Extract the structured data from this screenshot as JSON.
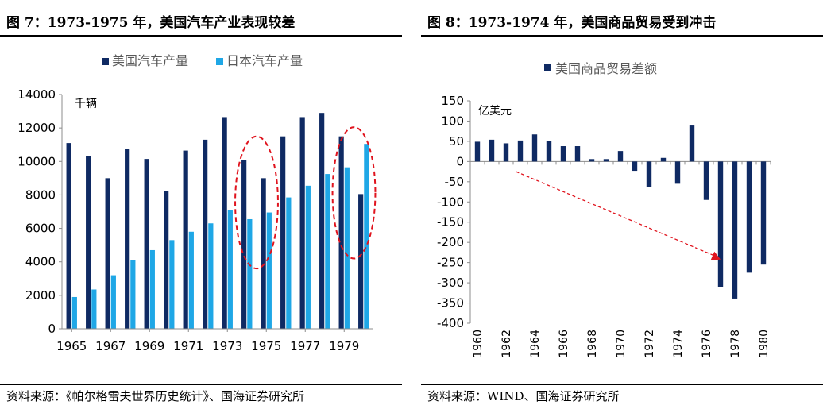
{
  "left": {
    "title": "图 7：1973-1975 年，美国汽车产业表现较差",
    "source": "资料来源：《帕尔格雷夫世界历史统计》、国海证券研究所"
  },
  "right": {
    "title": "图 8：1973-1974 年，美国商品贸易受到冲击",
    "source": "资料来源：WIND、国海证券研究所"
  },
  "chart_data": [
    {
      "type": "bar",
      "unit_label": "千辆",
      "ylim": [
        0,
        14000
      ],
      "yticks": [
        0,
        2000,
        4000,
        6000,
        8000,
        10000,
        12000,
        14000
      ],
      "x": [
        1965,
        1966,
        1967,
        1968,
        1969,
        1970,
        1971,
        1972,
        1973,
        1974,
        1975,
        1976,
        1977,
        1978,
        1979,
        1980
      ],
      "x_tick_labels": [
        "1965",
        "1967",
        "1969",
        "1971",
        "1973",
        "1975",
        "1977",
        "1979"
      ],
      "series": [
        {
          "name": "美国汽车产量",
          "color": "#0f2a63",
          "values": [
            11100,
            10300,
            9000,
            10750,
            10150,
            8250,
            10650,
            11300,
            12650,
            10100,
            9000,
            11500,
            12650,
            12900,
            11500,
            8050
          ]
        },
        {
          "name": "日本汽车产量",
          "color": "#1fa7e6",
          "values": [
            1900,
            2350,
            3200,
            4100,
            4700,
            5300,
            5800,
            6300,
            7100,
            6550,
            6950,
            7850,
            8550,
            9250,
            9650,
            11050
          ]
        }
      ],
      "legend_position": "top",
      "grid": false,
      "annotations": [
        "red dashed ellipse around 1974-1975",
        "red dashed ellipse around 1979-1980"
      ]
    },
    {
      "type": "bar",
      "unit_label": "亿美元",
      "ylim": [
        -400,
        150
      ],
      "yticks": [
        150,
        100,
        50,
        0,
        -50,
        -100,
        -150,
        -200,
        -250,
        -300,
        -350,
        -400
      ],
      "x": [
        1960,
        1961,
        1962,
        1963,
        1964,
        1965,
        1966,
        1967,
        1968,
        1969,
        1970,
        1971,
        1972,
        1973,
        1974,
        1975,
        1976,
        1977,
        1978,
        1979,
        1980
      ],
      "x_tick_labels": [
        "1960",
        "1962",
        "1964",
        "1966",
        "1968",
        "1970",
        "1972",
        "1974",
        "1976",
        "1978",
        "1980"
      ],
      "series": [
        {
          "name": "美国商品贸易差额",
          "color": "#0f2a63",
          "values": [
            49,
            54,
            45,
            52,
            67,
            50,
            38,
            38,
            6,
            6,
            26,
            -23,
            -64,
            9,
            -55,
            89,
            -95,
            -310,
            -339,
            -275,
            -255
          ]
        }
      ],
      "legend_position": "top",
      "grid": false,
      "annotations": [
        "red dashed arrow pointing from 1962 down to 1977"
      ]
    }
  ]
}
